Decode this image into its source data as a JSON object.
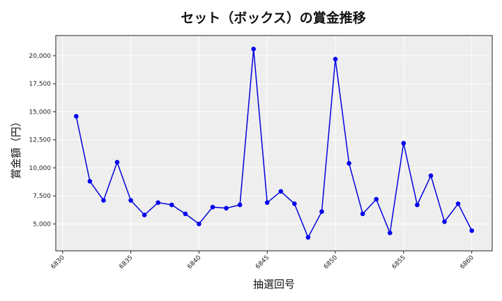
{
  "chart_data": {
    "type": "line",
    "title": "セット（ボックス）の賞金推移",
    "xlabel": "抽選回号",
    "ylabel": "賞金額（円）",
    "x": [
      6831,
      6832,
      6833,
      6834,
      6835,
      6836,
      6837,
      6838,
      6839,
      6840,
      6841,
      6842,
      6843,
      6844,
      6845,
      6846,
      6847,
      6848,
      6849,
      6850,
      6851,
      6852,
      6853,
      6854,
      6855,
      6856,
      6857,
      6858,
      6859,
      6860
    ],
    "series": [
      {
        "name": "セット（ボックス）",
        "values": [
          14600,
          8800,
          7100,
          10500,
          7100,
          5800,
          6900,
          6700,
          5900,
          5000,
          6500,
          6400,
          6700,
          20600,
          6900,
          7900,
          6800,
          3800,
          6100,
          19700,
          10400,
          5900,
          7200,
          4200,
          12200,
          6700,
          9300,
          5200,
          6800,
          4400
        ],
        "color": "#0000dd"
      }
    ],
    "xticks": [
      6830,
      6835,
      6840,
      6845,
      6850,
      6855,
      6860
    ],
    "yticks": [
      5000,
      7500,
      10000,
      12500,
      15000,
      17500,
      20000
    ],
    "ytick_labels": [
      "5,000",
      "7,500",
      "10,000",
      "12,500",
      "15,000",
      "17,500",
      "20,000"
    ],
    "xlim": [
      6829.5,
      6861.5
    ],
    "ylim": [
      2600,
      21800
    ],
    "grid": true,
    "legend": null
  },
  "colors": {
    "plot_background": "#eeeeee",
    "grid": "#ffffff",
    "line": "#0000dd",
    "marker": "#0000ee",
    "frame": "#222222"
  }
}
